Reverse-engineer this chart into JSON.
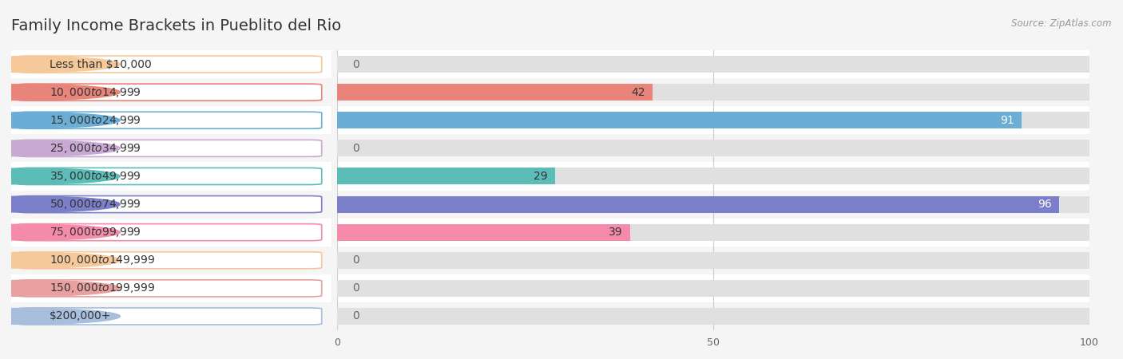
{
  "title": "Family Income Brackets in Pueblito del Rio",
  "source": "Source: ZipAtlas.com",
  "categories": [
    "Less than $10,000",
    "$10,000 to $14,999",
    "$15,000 to $24,999",
    "$25,000 to $34,999",
    "$35,000 to $49,999",
    "$50,000 to $74,999",
    "$75,000 to $99,999",
    "$100,000 to $149,999",
    "$150,000 to $199,999",
    "$200,000+"
  ],
  "values": [
    0,
    42,
    91,
    0,
    29,
    96,
    39,
    0,
    0,
    0
  ],
  "bar_colors": [
    "#f5c99a",
    "#e8847a",
    "#6aaed6",
    "#c9a8d4",
    "#5bbcb8",
    "#7b7ec8",
    "#f48bab",
    "#f5c99a",
    "#e8a0a0",
    "#a8bedd"
  ],
  "label_colors": [
    "#333333",
    "#333333",
    "#ffffff",
    "#333333",
    "#333333",
    "#ffffff",
    "#333333",
    "#333333",
    "#333333",
    "#333333"
  ],
  "xlim": [
    0,
    100
  ],
  "xticks": [
    0,
    50,
    100
  ],
  "background_color": "#f5f5f5",
  "bar_bg_color": "#e0e0e0",
  "row_colors": [
    "#ffffff",
    "#f5f5f5"
  ],
  "title_fontsize": 14,
  "label_fontsize": 10,
  "value_fontsize": 10
}
